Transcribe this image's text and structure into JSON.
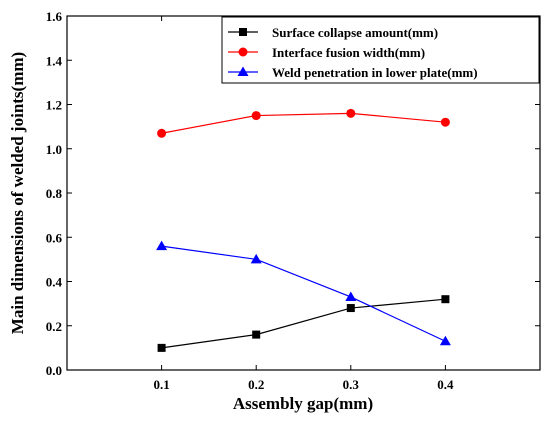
{
  "chart_data": {
    "type": "line",
    "xlabel": "Assembly gap(mm)",
    "ylabel": "Main dimensions of welded joints(mm)",
    "x": [
      0.1,
      0.2,
      0.3,
      0.4
    ],
    "x_ticks": [
      "0.1",
      "0.2",
      "0.3",
      "0.4"
    ],
    "xlim": [
      0.0,
      0.5
    ],
    "ylim": [
      0.0,
      1.6
    ],
    "y_ticks": [
      "0.0",
      "0.2",
      "0.4",
      "0.6",
      "0.8",
      "1.0",
      "1.2",
      "1.4",
      "1.6"
    ],
    "grid": false,
    "legend_position": "top-right",
    "series": [
      {
        "name": "Surface collapse amount(mm)",
        "values": [
          0.1,
          0.16,
          0.28,
          0.32
        ],
        "color": "#000000",
        "marker": "square"
      },
      {
        "name": "Interface fusion width(mm)",
        "values": [
          1.07,
          1.15,
          1.16,
          1.12
        ],
        "color": "#ff0000",
        "marker": "circle"
      },
      {
        "name": "Weld penetration in lower plate(mm)",
        "values": [
          0.56,
          0.5,
          0.33,
          0.13
        ],
        "color": "#0000ff",
        "marker": "triangle"
      }
    ]
  }
}
